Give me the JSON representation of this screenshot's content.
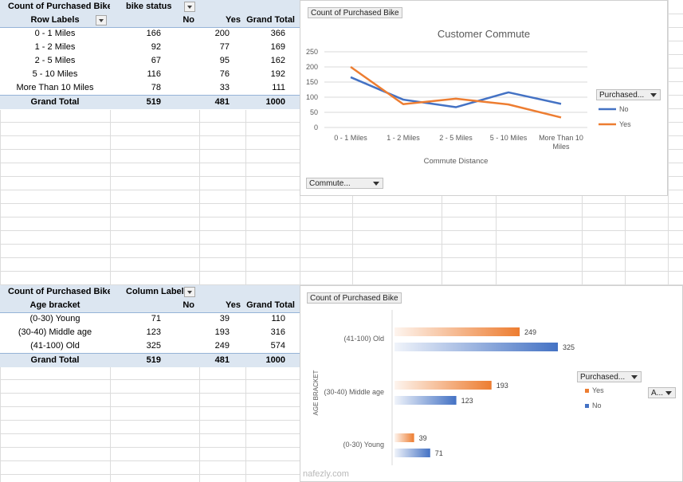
{
  "pivot1": {
    "title": "Count of Purchased Bike",
    "col_field": "bike status",
    "row_labels_header": "Row Labels",
    "columns": [
      "No",
      "Yes",
      "Grand Total"
    ],
    "rows": [
      {
        "label": "0 - 1 Miles",
        "no": "166",
        "yes": "200",
        "total": "366"
      },
      {
        "label": "1 - 2 Miles",
        "no": "92",
        "yes": "77",
        "total": "169"
      },
      {
        "label": "2 - 5 Miles",
        "no": "67",
        "yes": "95",
        "total": "162"
      },
      {
        "label": "5 - 10 Miles",
        "no": "116",
        "yes": "76",
        "total": "192"
      },
      {
        "label": "More Than 10 Miles",
        "no": "78",
        "yes": "33",
        "total": "111"
      }
    ],
    "grand_total": {
      "label": "Grand Total",
      "no": "519",
      "yes": "481",
      "total": "1000"
    }
  },
  "pivot2": {
    "title": "Count of Purchased Bike",
    "col_field": "Column Labels",
    "row_labels_header": "Age bracket",
    "columns": [
      "No",
      "Yes",
      "Grand Total"
    ],
    "rows": [
      {
        "label": "(0-30) Young",
        "no": "71",
        "yes": "39",
        "total": "110"
      },
      {
        "label": "(30-40) Middle age",
        "no": "123",
        "yes": "193",
        "total": "316"
      },
      {
        "label": "(41-100) Old",
        "no": "325",
        "yes": "249",
        "total": "574"
      }
    ],
    "grand_total": {
      "label": "Grand Total",
      "no": "519",
      "yes": "481",
      "total": "1000"
    }
  },
  "chart1_ui": {
    "value_button": "Count of Purchased Bike",
    "legend_button": "Purchased...",
    "axis_button": "Commute..."
  },
  "chart2_ui": {
    "value_button": "Count of Purchased Bike",
    "legend_button": "Purchased...",
    "axis_button": "A..."
  },
  "watermark": {
    "text": "nafezly.com"
  },
  "chart_data": [
    {
      "type": "line",
      "title": "Customer Commute",
      "xlabel": "Commute Distance",
      "ylabel": "",
      "categories": [
        "0 - 1 Miles",
        "1 - 2 Miles",
        "2 - 5 Miles",
        "5 - 10 Miles",
        "More Than 10 Miles"
      ],
      "series": [
        {
          "name": "No",
          "values": [
            166,
            92,
            67,
            116,
            78
          ],
          "color": "#4472c4"
        },
        {
          "name": "Yes",
          "values": [
            200,
            77,
            95,
            76,
            33
          ],
          "color": "#ed7d31"
        }
      ],
      "yticks": [
        "0",
        "50",
        "100",
        "150",
        "200",
        "250"
      ],
      "ylim": [
        0,
        250
      ],
      "grid": true,
      "legend": "right"
    },
    {
      "type": "bar",
      "orientation": "horizontal",
      "title": "",
      "ylabel": "AGE BRACKET",
      "categories": [
        "(41-100) Old",
        "(30-40) Middle age",
        "(0-30) Young"
      ],
      "series": [
        {
          "name": "Yes",
          "values": [
            249,
            193,
            39
          ],
          "color": "#ed7d31",
          "labels": [
            "249",
            "193",
            "39"
          ]
        },
        {
          "name": "No",
          "values": [
            325,
            123,
            71
          ],
          "color": "#4472c4",
          "labels": [
            "325",
            "123",
            "71"
          ]
        }
      ],
      "xlim": [
        0,
        340
      ],
      "grid": false,
      "legend": "right"
    }
  ]
}
